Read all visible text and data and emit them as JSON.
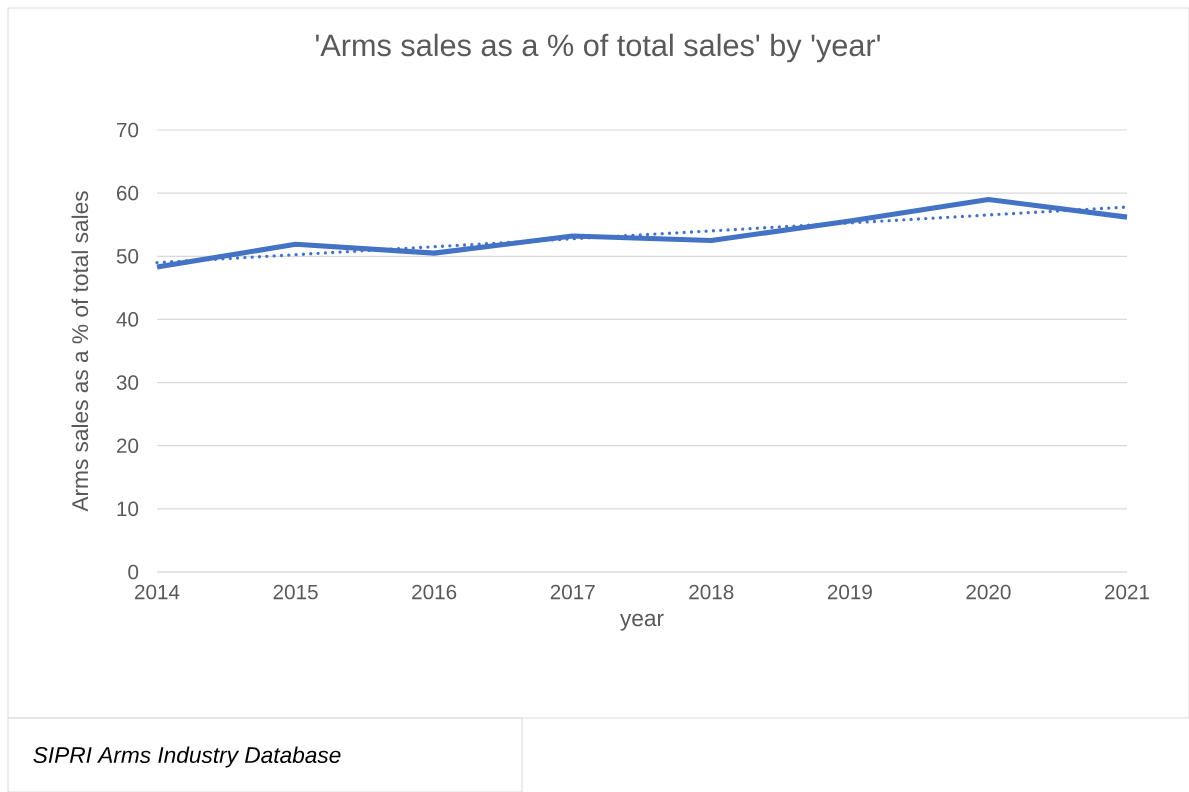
{
  "chart_data": {
    "type": "line",
    "title": "'Arms sales as a % of total sales' by 'year'",
    "xlabel": "year",
    "ylabel": "Arms sales as a % of total sales",
    "annotations": [
      "SIPRI Arms Industry Database"
    ],
    "x": [
      2014,
      2015,
      2016,
      2017,
      2018,
      2019,
      2020,
      2021
    ],
    "xlim": [
      2014,
      2021
    ],
    "xticks": [
      2014,
      2015,
      2016,
      2017,
      2018,
      2019,
      2020,
      2021
    ],
    "ylim": [
      0,
      70
    ],
    "yticks": [
      0,
      10,
      20,
      30,
      40,
      50,
      60,
      70
    ],
    "grid": "y",
    "marker": "none",
    "series": [
      {
        "color": "#4472c4",
        "line_style": "solid",
        "values": [
          48.3,
          51.9,
          50.5,
          53.2,
          52.5,
          55.6,
          59.0,
          56.2
        ]
      },
      {
        "type": "line",
        "color": "#4472c4",
        "line_style": "dotted",
        "x": [
          2014,
          2021
        ],
        "values": [
          49.0,
          57.8
        ]
      }
    ]
  }
}
